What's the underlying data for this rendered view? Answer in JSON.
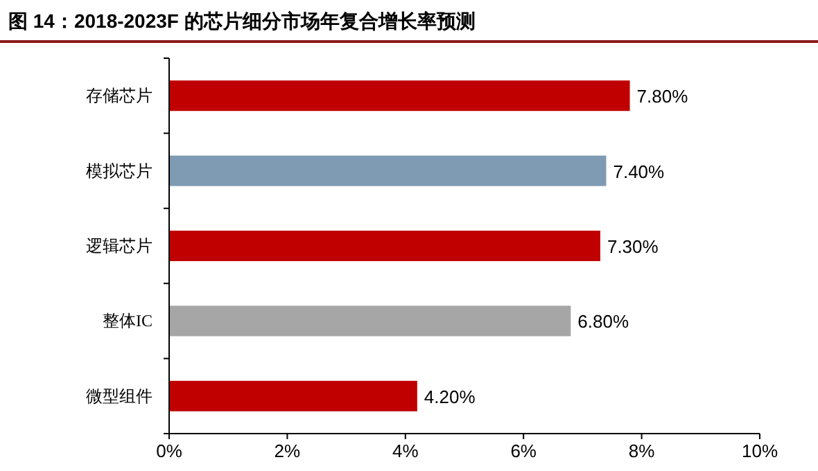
{
  "chart_data": {
    "type": "bar",
    "orientation": "horizontal",
    "title": "图 14：2018-2023F 的芯片细分市场年复合增长率预测",
    "categories": [
      "存储芯片",
      "模拟芯片",
      "逻辑芯片",
      "整体IC",
      "微型组件"
    ],
    "values": [
      7.8,
      7.4,
      7.3,
      6.8,
      4.2
    ],
    "colors": [
      "#c00000",
      "#7f9bb3",
      "#c00000",
      "#a6a6a6",
      "#c00000"
    ],
    "value_labels": [
      "7.80%",
      "7.40%",
      "7.30%",
      "6.80%",
      "4.20%"
    ],
    "xlim": [
      0,
      10
    ],
    "xticks": [
      {
        "value": 0,
        "label": "0%"
      },
      {
        "value": 2,
        "label": "2%"
      },
      {
        "value": 4,
        "label": "4%"
      },
      {
        "value": 6,
        "label": "6%"
      },
      {
        "value": 8,
        "label": "8%"
      },
      {
        "value": 10,
        "label": "10%"
      }
    ]
  }
}
